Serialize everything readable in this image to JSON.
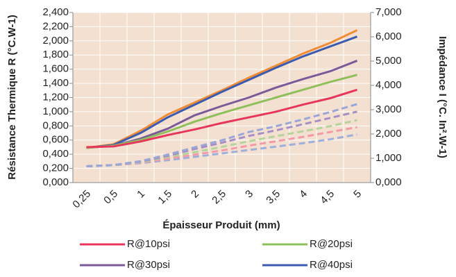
{
  "chart_data": {
    "type": "line",
    "x_label": "Épaisseur Produit (mm)",
    "y_label": "Résistance Thermique R (°C.W-1)",
    "y2_label": "Impédance I (°C. In².W-1)",
    "categories": [
      "0,25",
      "0,5",
      "1",
      "1,5",
      "2",
      "2,5",
      "3",
      "3,5",
      "4",
      "4,5",
      "5"
    ],
    "ylim": [
      0,
      2.4
    ],
    "yticks": [
      {
        "value": 0,
        "label": "0,000"
      },
      {
        "value": 0.2,
        "label": "0,200"
      },
      {
        "value": 0.4,
        "label": "0,400"
      },
      {
        "value": 0.6,
        "label": "0,600"
      },
      {
        "value": 0.8,
        "label": "0,800"
      },
      {
        "value": 1.0,
        "label": "1,000"
      },
      {
        "value": 1.2,
        "label": "1,200"
      },
      {
        "value": 1.4,
        "label": "1,400"
      },
      {
        "value": 1.6,
        "label": "1,600"
      },
      {
        "value": 1.8,
        "label": "1,800"
      },
      {
        "value": 2.0,
        "label": "2,000"
      },
      {
        "value": 2.2,
        "label": "2,200"
      },
      {
        "value": 2.4,
        "label": "2,400"
      }
    ],
    "y2lim": [
      0,
      7000
    ],
    "y2ticks": [
      {
        "value": 0,
        "label": "0,000"
      },
      {
        "value": 1000,
        "label": "1,000"
      },
      {
        "value": 2000,
        "label": "2,000"
      },
      {
        "value": 3000,
        "label": "3,000"
      },
      {
        "value": 4000,
        "label": "4,000"
      },
      {
        "value": 5000,
        "label": "5,000"
      },
      {
        "value": 6000,
        "label": "6,000"
      },
      {
        "value": 7000,
        "label": "7,000"
      }
    ],
    "grid": true,
    "series": [
      {
        "name": "R@10psi",
        "color": "#e8365a",
        "values": [
          0.5,
          0.51,
          0.58,
          0.67,
          0.75,
          0.84,
          0.92,
          1.0,
          1.1,
          1.19,
          1.31
        ]
      },
      {
        "name": "R@20psi",
        "color": "#8fbf5a",
        "values": [
          0.49,
          0.52,
          0.6,
          0.72,
          0.86,
          0.98,
          1.09,
          1.2,
          1.31,
          1.42,
          1.52
        ]
      },
      {
        "name": "R@30psi",
        "color": "#7b5a9a",
        "values": [
          0.49,
          0.52,
          0.62,
          0.76,
          0.95,
          1.08,
          1.2,
          1.34,
          1.46,
          1.57,
          1.72
        ]
      },
      {
        "name": "R@40psi",
        "color": "#3b5bb0",
        "values": [
          0.49,
          0.53,
          0.7,
          0.92,
          1.1,
          1.28,
          1.45,
          1.62,
          1.78,
          1.92,
          2.06
        ]
      },
      {
        "color": "#f08c34",
        "values": [
          0.49,
          0.54,
          0.73,
          0.96,
          1.13,
          1.3,
          1.48,
          1.65,
          1.82,
          1.97,
          2.15
        ]
      },
      {
        "color": "#9aa6d8",
        "axis": "y2",
        "dashed": true,
        "values": [
          670,
          720,
          880,
          1150,
          1450,
          1740,
          2080,
          2320,
          2600,
          2900,
          3230
        ]
      },
      {
        "color": "#a58fc4",
        "axis": "y2",
        "dashed": true,
        "values": [
          670,
          720,
          860,
          1100,
          1380,
          1640,
          1920,
          2150,
          2400,
          2660,
          2920
        ]
      },
      {
        "color": "#b6d49a",
        "axis": "y2",
        "dashed": true,
        "values": [
          670,
          720,
          840,
          1050,
          1250,
          1470,
          1700,
          1910,
          2110,
          2320,
          2570
        ]
      },
      {
        "color": "#f29aa8",
        "axis": "y2",
        "dashed": true,
        "values": [
          670,
          720,
          820,
          980,
          1150,
          1320,
          1520,
          1700,
          1880,
          2080,
          2280
        ]
      },
      {
        "color": "#9db0dc",
        "axis": "y2",
        "dashed": true,
        "values": [
          670,
          720,
          800,
          920,
          1060,
          1200,
          1340,
          1480,
          1620,
          1780,
          1980
        ]
      }
    ]
  }
}
